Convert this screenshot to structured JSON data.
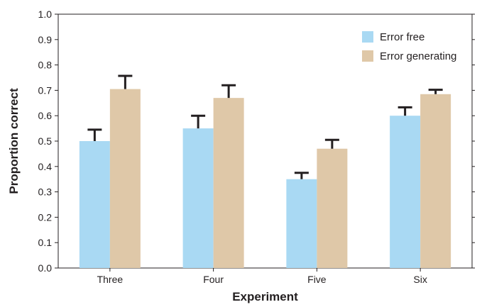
{
  "chart_data": {
    "type": "bar",
    "categories": [
      "Three",
      "Four",
      "Five",
      "Six"
    ],
    "series": [
      {
        "name": "Error free",
        "color": "#a9d9f3",
        "values": [
          0.5,
          0.55,
          0.35,
          0.6
        ],
        "errors": [
          0.045,
          0.05,
          0.025,
          0.033
        ]
      },
      {
        "name": "Error generating",
        "color": "#dfc8a8",
        "values": [
          0.705,
          0.67,
          0.47,
          0.685
        ],
        "errors": [
          0.052,
          0.05,
          0.035,
          0.017
        ]
      }
    ],
    "xlabel": "Experiment",
    "ylabel": "Proportion correct",
    "ylim": [
      0,
      1.0
    ],
    "yticks": [
      0.0,
      0.1,
      0.2,
      0.3,
      0.4,
      0.5,
      0.6,
      0.7,
      0.8,
      0.9,
      1.0
    ],
    "legend_position": "top-right",
    "grid": false
  }
}
